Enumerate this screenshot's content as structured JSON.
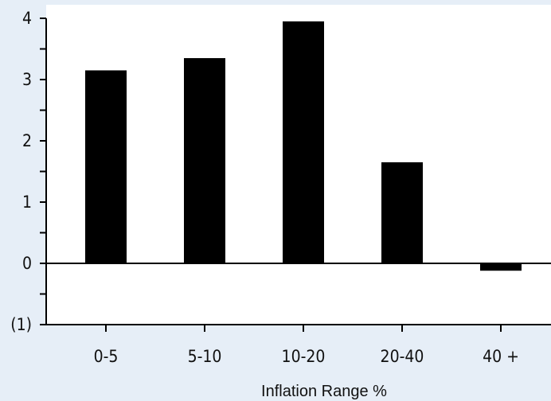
{
  "chart_data": {
    "type": "bar",
    "title": "",
    "xlabel": "Inflation Range %",
    "ylabel": "",
    "categories": [
      "0-5",
      "5-10",
      "10-20",
      "20-40",
      "40 +"
    ],
    "values": [
      3.15,
      3.35,
      3.95,
      1.65,
      -0.12
    ],
    "ylim": [
      -1,
      4
    ],
    "y_ticks": [
      {
        "value": 4,
        "label": "4"
      },
      {
        "value": 3,
        "label": "3"
      },
      {
        "value": 2,
        "label": "2"
      },
      {
        "value": 1,
        "label": "1"
      },
      {
        "value": 0,
        "label": "0"
      },
      {
        "value": -1,
        "label": "(1)"
      }
    ],
    "grid": false,
    "legend": "none",
    "colors": {
      "background": "#e6eef7",
      "plot_background": "#ffffff",
      "bar": "#000000",
      "axis": "#000000"
    }
  }
}
